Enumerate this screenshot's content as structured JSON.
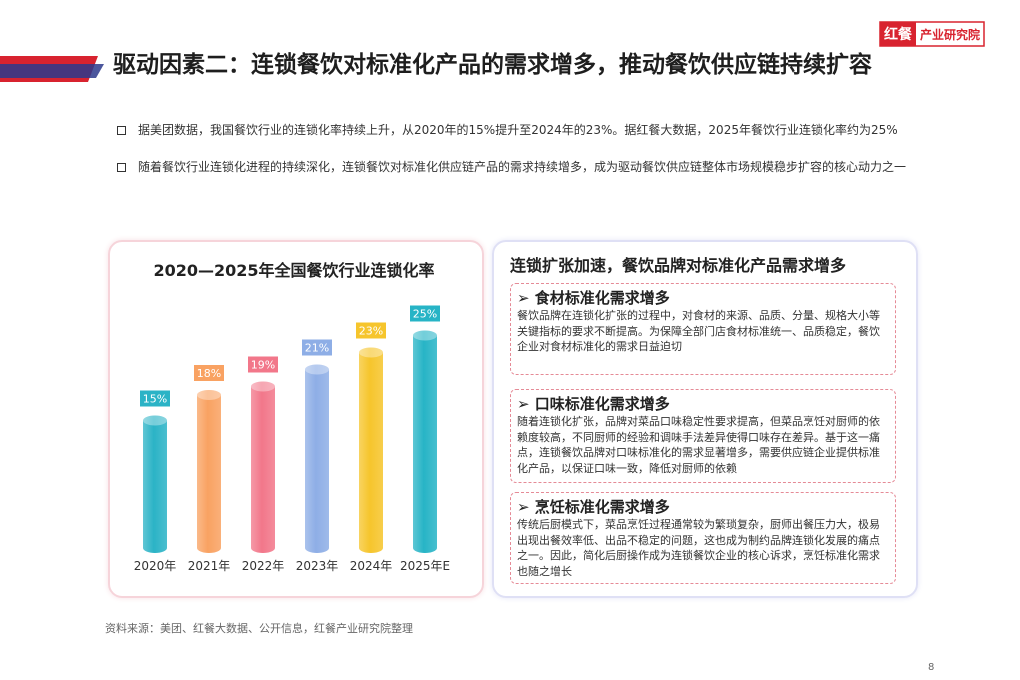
{
  "logo": {
    "brand": "红餐",
    "name": "产业研究院"
  },
  "header": {
    "title": "驱动因素二：连锁餐饮对标准化产品的需求增多，推动餐饮供应链持续扩容"
  },
  "bullets": [
    "据美团数据，我国餐饮行业的连锁化率持续上升，从2020年的15%提升至2024年的23%。据红餐大数据，2025年餐饮行业连锁化率约为25%",
    "随着餐饮行业连锁化进程的持续深化，连锁餐饮对标准化供应链产品的需求持续增多，成为驱动餐饮供应链整体市场规模稳步扩容的核心动力之一"
  ],
  "chart_data": {
    "type": "bar",
    "title": "2020—2025年全国餐饮行业连锁化率",
    "categories": [
      "2020年",
      "2021年",
      "2022年",
      "2023年",
      "2024年",
      "2025年E"
    ],
    "values": [
      15,
      18,
      19,
      21,
      23,
      25
    ],
    "value_labels": [
      "15%",
      "18%",
      "19%",
      "21%",
      "23%",
      "25%"
    ],
    "colors": [
      "#2bb3c6",
      "#f9a262",
      "#f2778a",
      "#8eaee6",
      "#f6c52c",
      "#27b4c6"
    ]
  },
  "panel": {
    "title": "连锁扩张加速，餐饮品牌对标准化产品需求增多",
    "items": [
      {
        "title": "食材标准化需求增多",
        "text": "餐饮品牌在连锁化扩张的过程中，对食材的来源、品质、分量、规格大小等关键指标的要求不断提高。为保障全部门店食材标准统一、品质稳定，餐饮企业对食材标准化的需求日益迫切"
      },
      {
        "title": "口味标准化需求增多",
        "text": "随着连锁化扩张，品牌对菜品口味稳定性要求提高，但菜品烹饪对厨师的依赖度较高，不同厨师的经验和调味手法差异使得口味存在差异。基于这一痛点，连锁餐饮品牌对口味标准化的需求显著增多，需要供应链企业提供标准化产品，以保证口味一致，降低对厨师的依赖"
      },
      {
        "title": "烹饪标准化需求增多",
        "text": "传统后厨模式下，菜品烹饪过程通常较为繁琐复杂，厨师出餐压力大，极易出现出餐效率低、出品不稳定的问题，这也成为制约品牌连锁化发展的痛点之一。因此，简化后厨操作成为连锁餐饮企业的核心诉求，烹饪标准化需求也随之增长"
      }
    ]
  },
  "source": "资料来源：美团、红餐大数据、公开信息，红餐产业研究院整理",
  "page_number": "8"
}
